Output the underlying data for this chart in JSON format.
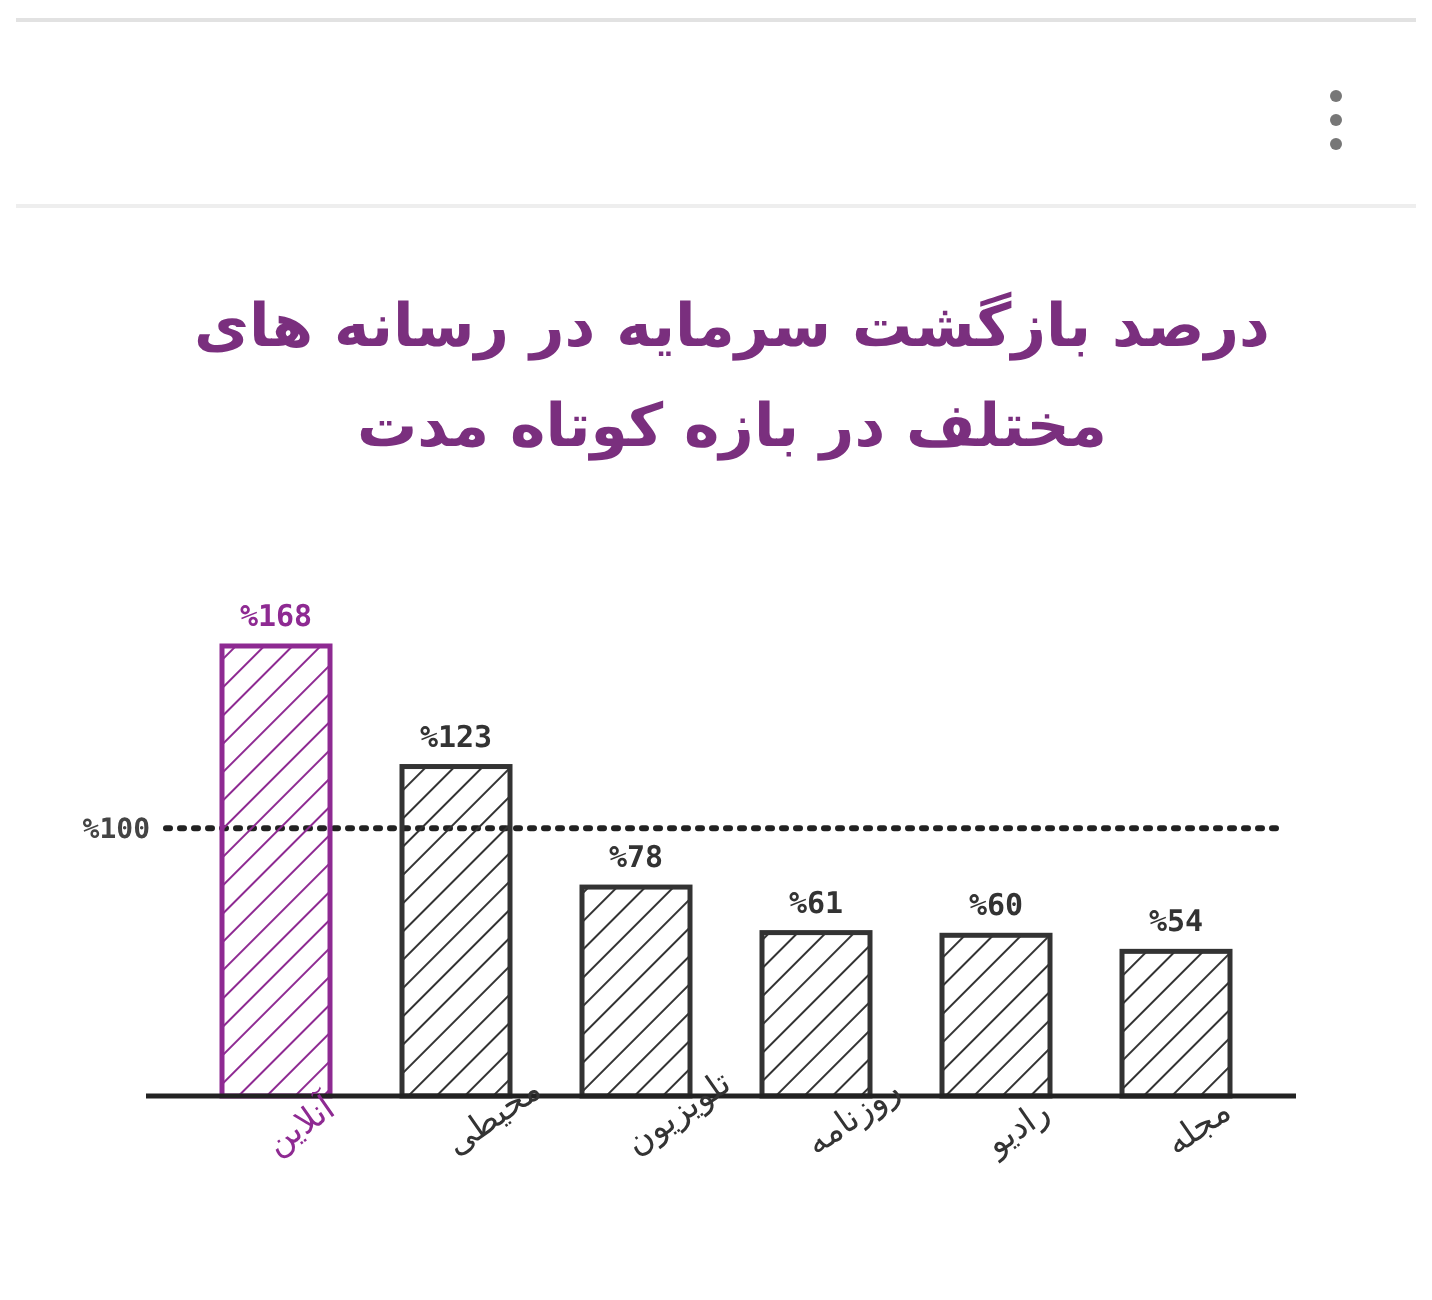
{
  "chart_data": {
    "type": "bar",
    "title": "درصد بازگشت سرمایه در رسانه های\nمختلف در بازه کوتاه مدت",
    "categories": [
      "آنلاین",
      "محیطی",
      "تلویزیون",
      "روزنامه",
      "رادیو",
      "مجله"
    ],
    "values": [
      168,
      123,
      78,
      61,
      60,
      54
    ],
    "colors": [
      "#8e2a92",
      "#333333",
      "#333333",
      "#333333",
      "#333333",
      "#333333"
    ],
    "value_labels": [
      "%168",
      "%123",
      "%78",
      "%61",
      "%60",
      "%54"
    ],
    "tick_labels": "x",
    "ref_lines": [
      {
        "axis": "y",
        "value": 100,
        "label": "%100",
        "color": "#222222",
        "line_style": "dotted"
      }
    ]
  }
}
